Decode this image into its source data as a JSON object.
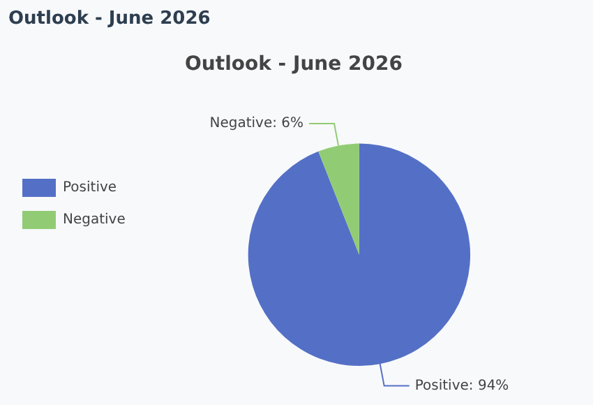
{
  "chart_data": {
    "type": "pie",
    "title": "Outlook - June 2026",
    "annotations": [
      "Outlook - June 2026"
    ],
    "categories": [
      "Positive",
      "Negative"
    ],
    "values": [
      94,
      6
    ],
    "colors": [
      "#5470c6",
      "#91cc75"
    ],
    "value_labels": [
      "Positive: 94%",
      "Negative: 6%"
    ],
    "legend": "left"
  }
}
